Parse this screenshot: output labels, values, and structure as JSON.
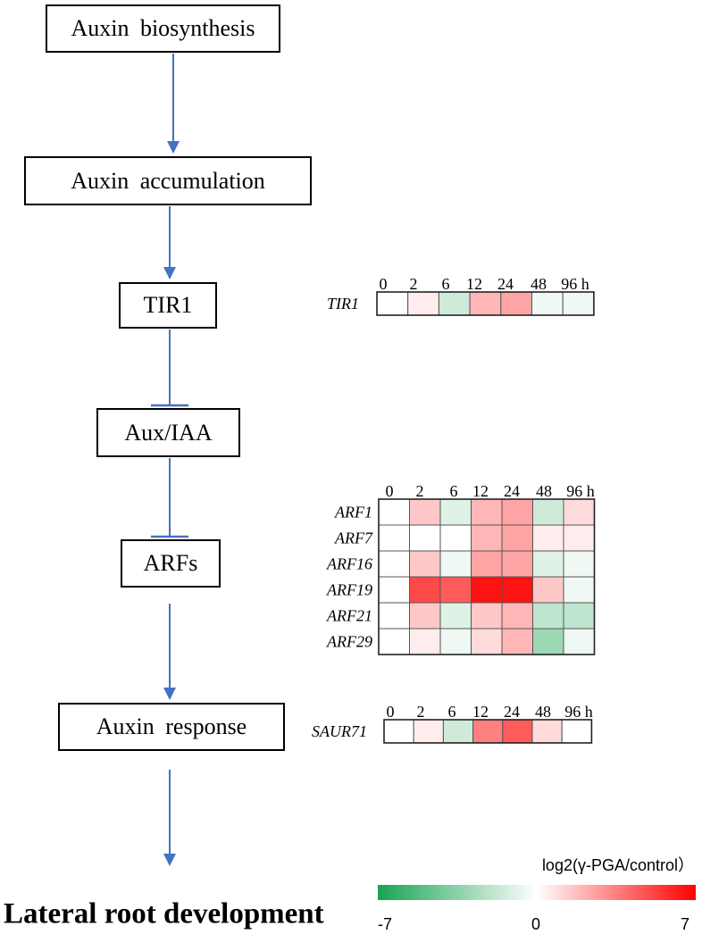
{
  "pathway": {
    "steps": [
      "Auxin biosynthesis",
      "Auxin accumulation",
      "TIR1",
      "Aux/IAA",
      "ARFs",
      "Auxin response"
    ],
    "final": "Lateral root development",
    "connectors": [
      "activates",
      "activates",
      "inhibits",
      "inhibits",
      "activates",
      "activates"
    ]
  },
  "heatmap": {
    "time_labels": [
      "0",
      "2",
      "6",
      "12",
      "24",
      "48",
      "96 h"
    ],
    "units": "h",
    "groups": [
      {
        "name": "TIR1",
        "rows": [
          {
            "gene": "TIR1",
            "values": [
              0,
              0.5,
              -1.5,
              2,
              2.5,
              -0.5,
              -0.5
            ]
          }
        ]
      },
      {
        "name": "ARFs",
        "rows": [
          {
            "gene": "ARF1",
            "values": [
              0,
              1.5,
              -1,
              2,
              2.5,
              -1.5,
              1
            ]
          },
          {
            "gene": "ARF7",
            "values": [
              0,
              0,
              0,
              2,
              2.5,
              0.5,
              0.5
            ]
          },
          {
            "gene": "ARF16",
            "values": [
              0,
              1.5,
              -0.5,
              2.5,
              2.5,
              -1,
              -0.5
            ]
          },
          {
            "gene": "ARF19",
            "values": [
              0,
              5,
              4.5,
              6.5,
              6.5,
              1.5,
              -0.5
            ]
          },
          {
            "gene": "ARF21",
            "values": [
              0,
              1.5,
              -1,
              1.5,
              2,
              -2,
              -2
            ]
          },
          {
            "gene": "ARF29",
            "values": [
              0,
              0.5,
              -0.5,
              1,
              2,
              -3,
              -0.5
            ]
          }
        ]
      },
      {
        "name": "SAUR71",
        "rows": [
          {
            "gene": "SAUR71",
            "values": [
              0,
              0.5,
              -1.5,
              3.5,
              4.5,
              1,
              0
            ]
          }
        ]
      }
    ]
  },
  "color_scale": {
    "label": "log2(γ-PGA/control）",
    "min": -7,
    "mid": 0,
    "max": 7,
    "tick_labels": [
      "-7",
      "0",
      "7"
    ],
    "low_color": "#1aa353",
    "mid_color": "#ffffff",
    "high_color": "#ff0000"
  },
  "colors": {
    "arrow": "#4472c4",
    "border": "#000000"
  }
}
